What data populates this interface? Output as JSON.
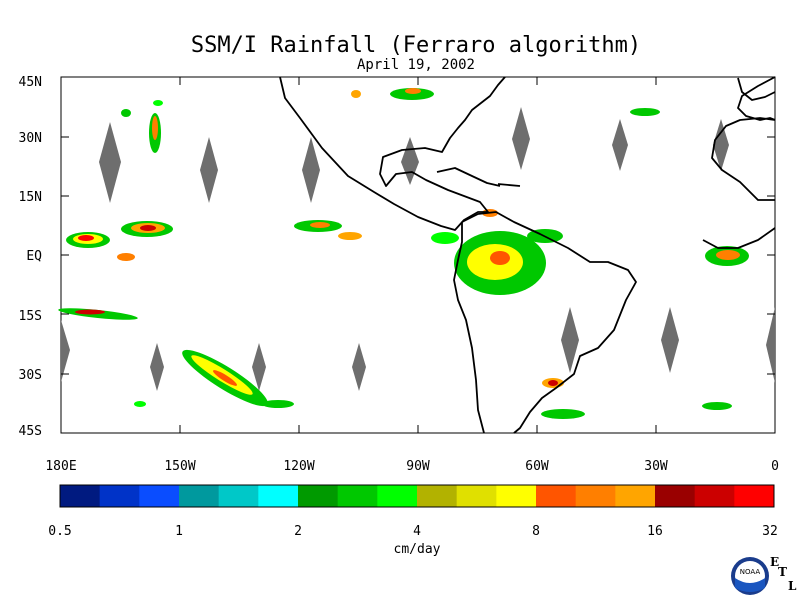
{
  "title": "SSM/I Rainfall (Ferraro algorithm)",
  "subtitle": "April 19, 2002",
  "map": {
    "lat_labels": [
      "45N",
      "30N",
      "15N",
      "EQ",
      "15S",
      "30S",
      "45S"
    ],
    "lon_labels": [
      "180E",
      "150W",
      "120W",
      "90W",
      "60W",
      "30W",
      "0"
    ]
  },
  "colorbar": {
    "unit_label": "cm/day",
    "tick_labels": [
      "0.5",
      "1",
      "2",
      "4",
      "8",
      "16",
      "32"
    ],
    "colors": [
      "#001a80",
      "#0033c8",
      "#0a4dff",
      "#00999e",
      "#00c8c8",
      "#00ffff",
      "#009a00",
      "#00c800",
      "#00ff00",
      "#b2b200",
      "#e0e000",
      "#ffff00",
      "#ff5500",
      "#ff7f00",
      "#ffa500",
      "#9a0000",
      "#cc0000",
      "#ff0000"
    ]
  },
  "logo": {
    "text": "NOAA",
    "lab_letters": [
      "E",
      "T",
      "L"
    ]
  },
  "colors": {
    "gap": "#6e6e6e",
    "coast": "#000000"
  }
}
